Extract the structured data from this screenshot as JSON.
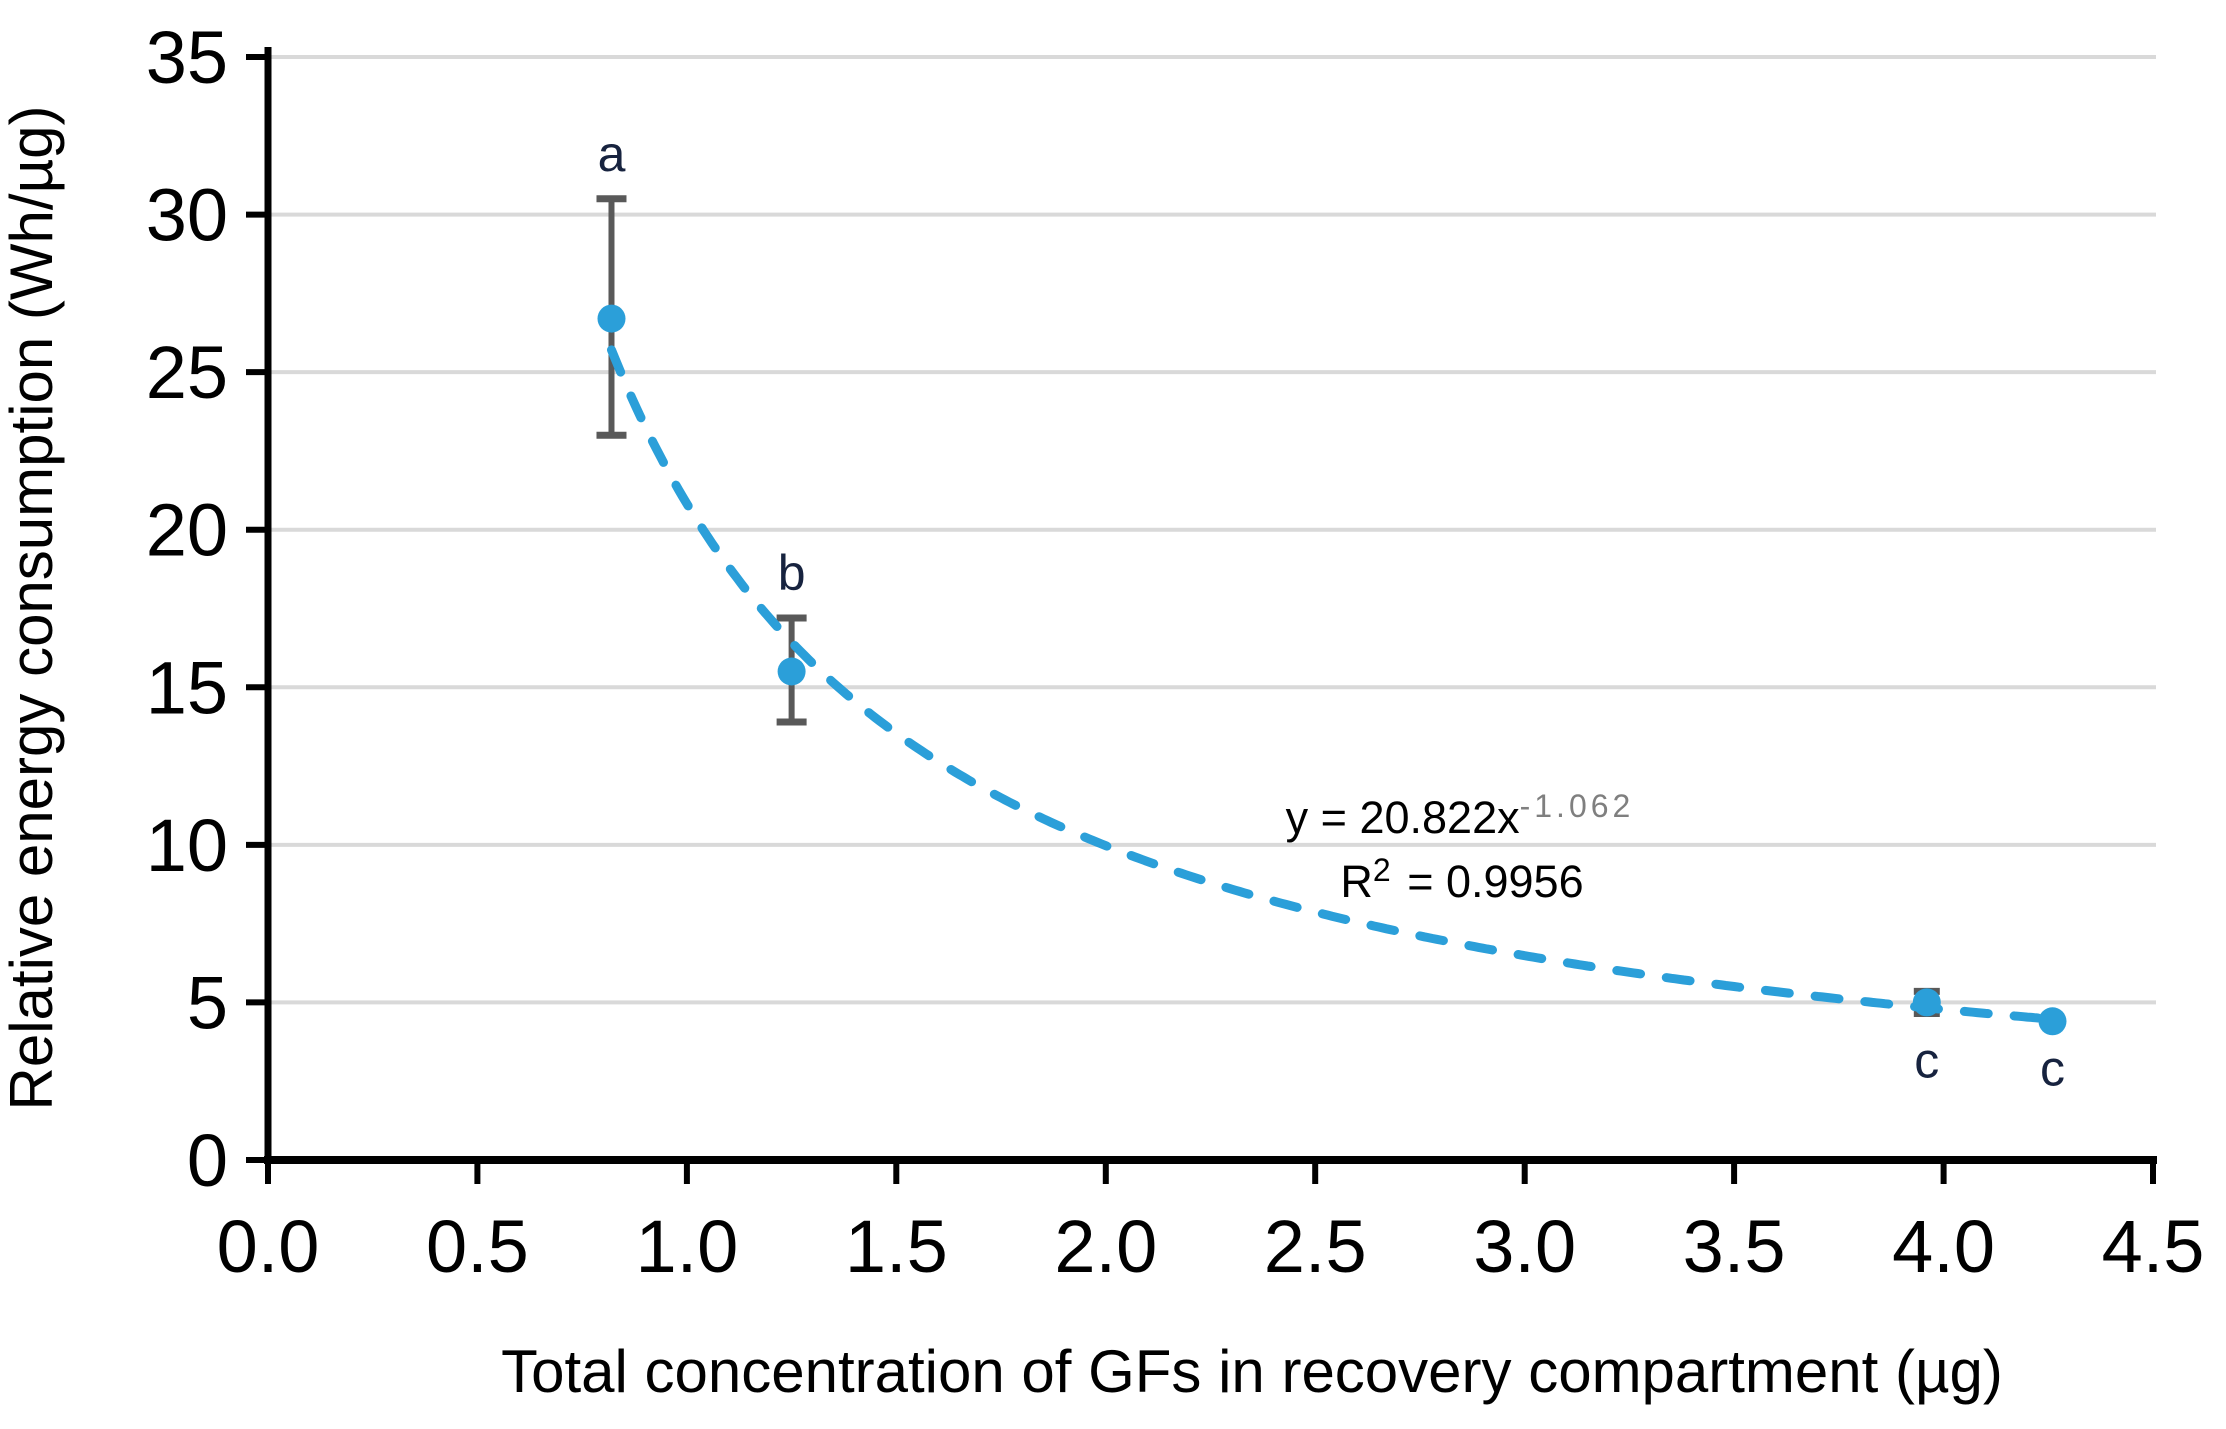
{
  "chart_data": {
    "type": "scatter",
    "title": "",
    "xlabel": "Total concentration of GFs in recovery compartment (µg)",
    "ylabel": "Relative energy consumption (Wh/µg)",
    "xlim": [
      0,
      4.5
    ],
    "ylim": [
      0,
      35
    ],
    "grid": "horizontal",
    "legend": "none",
    "xticks": {
      "values": [
        0,
        0.5,
        1.0,
        1.5,
        2.0,
        2.5,
        3.0,
        3.5,
        4.0,
        4.5
      ],
      "labels": [
        "0.0",
        "0.5",
        "1.0",
        "1.5",
        "2.0",
        "2.5",
        "3.0",
        "3.5",
        "4.0",
        "4.5"
      ]
    },
    "yticks": {
      "values": [
        0,
        5,
        10,
        15,
        20,
        25,
        30,
        35
      ],
      "labels": [
        "0",
        "5",
        "10",
        "15",
        "20",
        "25",
        "30",
        "35"
      ]
    },
    "series": [
      {
        "name": "relative energy consumption",
        "marker": "circle",
        "marker_color": "#2B9FD9",
        "error_bar_color": "#595959",
        "points": [
          {
            "x": 0.82,
            "y": 26.7,
            "err_plus": 3.8,
            "err_minus": 3.7,
            "label": "a",
            "label_side": "above"
          },
          {
            "x": 1.25,
            "y": 15.5,
            "err_plus": 1.7,
            "err_minus": 1.6,
            "label": "b",
            "label_side": "above"
          },
          {
            "x": 3.96,
            "y": 5.0,
            "err_plus": 0.35,
            "err_minus": 0.35,
            "label": "c",
            "label_side": "below"
          },
          {
            "x": 4.26,
            "y": 4.4,
            "err_plus": 0,
            "err_minus": 0,
            "label": "c",
            "label_side": "below"
          }
        ]
      }
    ],
    "trendline": {
      "type": "power",
      "coefficient": 20.822,
      "exponent": -1.062,
      "x_start": 0.82,
      "x_end": 4.27,
      "style": "dashed",
      "color": "#2B9FD9"
    },
    "annotation": {
      "equation_prefix": "y = 20.822x",
      "equation_exponent": "-1.062",
      "r2_base": "R",
      "r2_exponent": "2",
      "r2_suffix": " = 0.9956",
      "exponent_color": "#7f7f7f"
    },
    "colors": {
      "gridline": "#D9D9D9",
      "axis": "#000000",
      "tick_label": "#000000",
      "point_label": "#17233F"
    }
  }
}
